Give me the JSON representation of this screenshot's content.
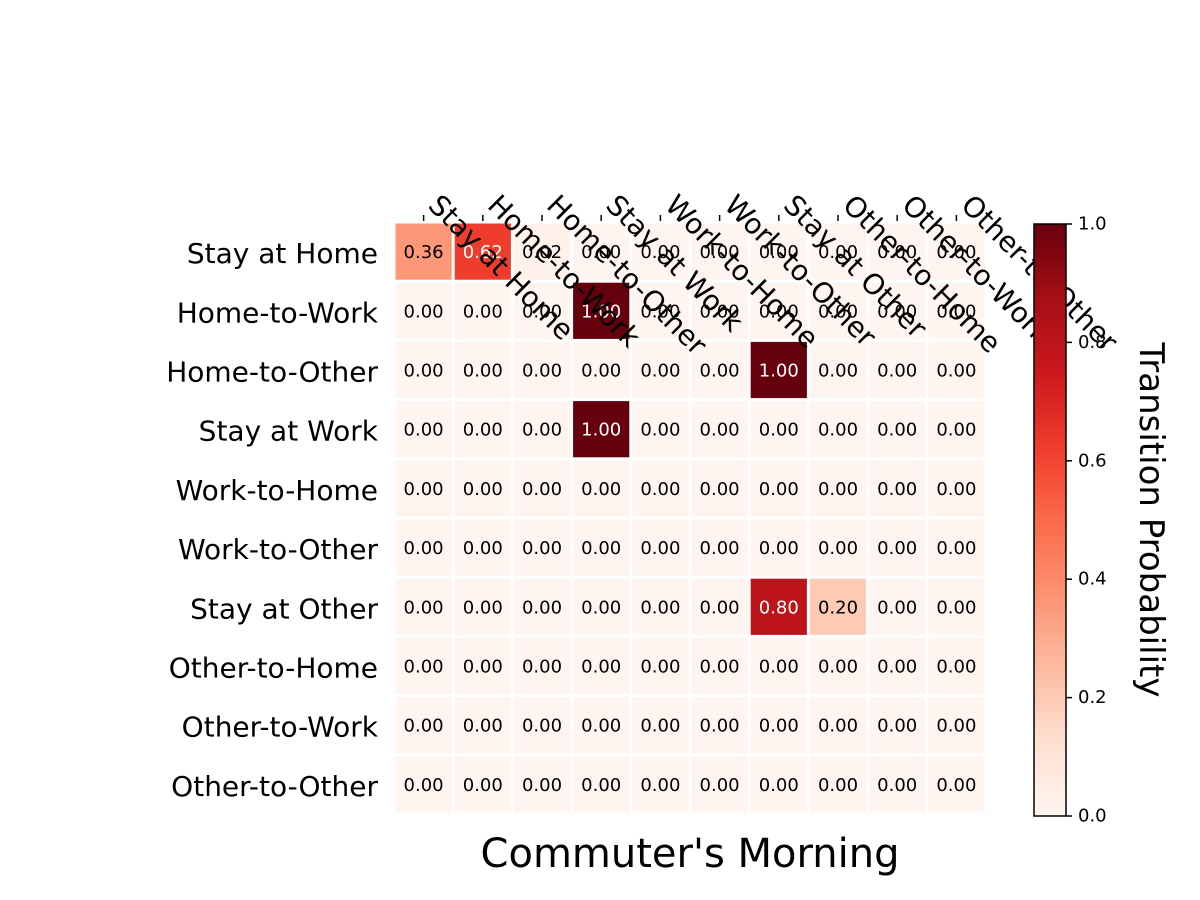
{
  "chart_data": {
    "type": "heatmap",
    "title": "",
    "xlabel": "Commuter's Morning",
    "ylabel": "",
    "x_categories": [
      "Stay at Home",
      "Home-to-Work",
      "Home-to-Other",
      "Stay at Work",
      "Work-to-Home",
      "Work-to-Other",
      "Stay at Other",
      "Other-to-Home",
      "Other-to-Work",
      "Other-to-Other"
    ],
    "y_categories": [
      "Stay at Home",
      "Home-to-Work",
      "Home-to-Other",
      "Stay at Work",
      "Work-to-Home",
      "Work-to-Other",
      "Stay at Other",
      "Other-to-Home",
      "Other-to-Work",
      "Other-to-Other"
    ],
    "values": [
      [
        0.36,
        0.62,
        0.02,
        0.0,
        0.0,
        0.0,
        0.0,
        0.0,
        0.0,
        0.0
      ],
      [
        0.0,
        0.0,
        0.0,
        1.0,
        0.0,
        0.0,
        0.0,
        0.0,
        0.0,
        0.0
      ],
      [
        0.0,
        0.0,
        0.0,
        0.0,
        0.0,
        0.0,
        1.0,
        0.0,
        0.0,
        0.0
      ],
      [
        0.0,
        0.0,
        0.0,
        1.0,
        0.0,
        0.0,
        0.0,
        0.0,
        0.0,
        0.0
      ],
      [
        0.0,
        0.0,
        0.0,
        0.0,
        0.0,
        0.0,
        0.0,
        0.0,
        0.0,
        0.0
      ],
      [
        0.0,
        0.0,
        0.0,
        0.0,
        0.0,
        0.0,
        0.0,
        0.0,
        0.0,
        0.0
      ],
      [
        0.0,
        0.0,
        0.0,
        0.0,
        0.0,
        0.0,
        0.8,
        0.2,
        0.0,
        0.0
      ],
      [
        0.0,
        0.0,
        0.0,
        0.0,
        0.0,
        0.0,
        0.0,
        0.0,
        0.0,
        0.0
      ],
      [
        0.0,
        0.0,
        0.0,
        0.0,
        0.0,
        0.0,
        0.0,
        0.0,
        0.0,
        0.0
      ],
      [
        0.0,
        0.0,
        0.0,
        0.0,
        0.0,
        0.0,
        0.0,
        0.0,
        0.0,
        0.0
      ]
    ],
    "value_format": "0.00",
    "colormap": "Reds",
    "colorbar": {
      "label": "Transition Probability",
      "range": [
        0.0,
        1.0
      ],
      "ticks": [
        0.0,
        0.2,
        0.4,
        0.6,
        0.8,
        1.0
      ],
      "tick_labels": [
        "0.0",
        "0.2",
        "0.4",
        "0.6",
        "0.8",
        "1.0"
      ]
    },
    "x_tick_position": "top",
    "grid": false,
    "legend": "none"
  }
}
